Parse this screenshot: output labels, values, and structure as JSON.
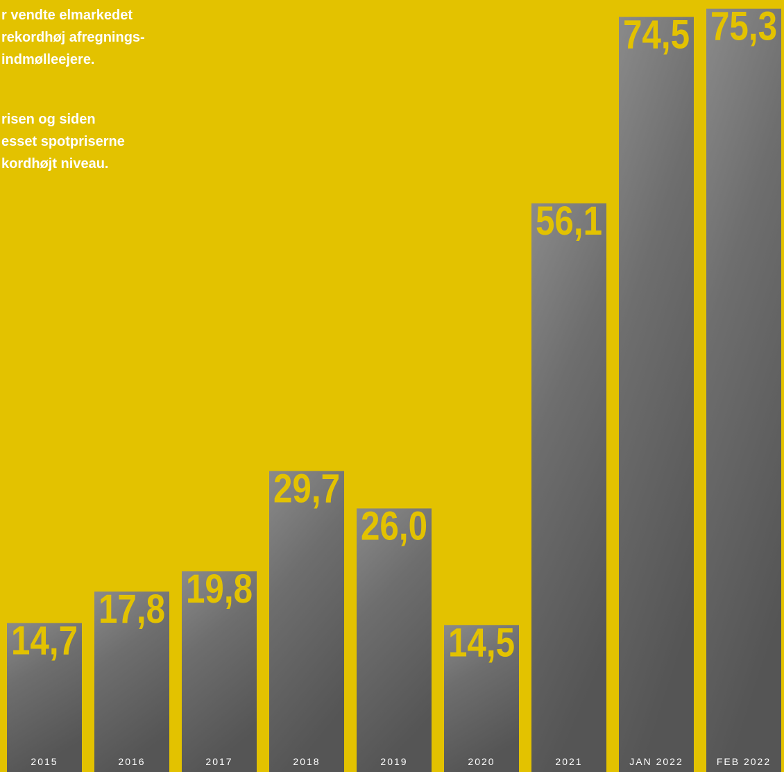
{
  "chart_data": {
    "type": "bar",
    "annotations": [
      "r vendte elmarkedet",
      "rekordhøj afregnings-",
      "indmølleejere.",
      "risen og siden",
      "esset spotpriserne",
      "kordhøjt niveau."
    ],
    "categories": [
      "2015",
      "2016",
      "2017",
      "2018",
      "2019",
      "2020",
      "2021",
      "JAN 2022",
      "FEB 2022"
    ],
    "values": [
      14.7,
      17.8,
      19.8,
      29.7,
      26.0,
      14.5,
      56.1,
      74.5,
      75.3
    ],
    "value_labels": [
      "14,7",
      "17,8",
      "19,8",
      "29,7",
      "26,0",
      "14,5",
      "56,1",
      "74,5",
      "75,3"
    ],
    "color": "#e3c200"
  }
}
